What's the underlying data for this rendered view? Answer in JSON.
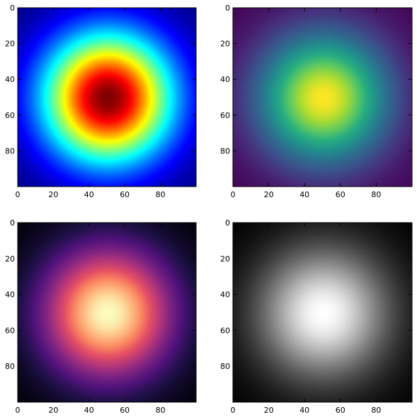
{
  "chart_data": [
    {
      "type": "heatmap",
      "colormap": "jet",
      "function": "radial gaussian",
      "data_shape": [
        100,
        100
      ],
      "center": [
        50,
        50
      ],
      "sigma": 25,
      "value_range": [
        0,
        1
      ],
      "xlim": [
        0,
        100
      ],
      "ylim": [
        100,
        0
      ],
      "xticks": [
        0,
        20,
        40,
        60,
        80
      ],
      "yticks": [
        0,
        20,
        40,
        60,
        80
      ],
      "xtick_labels": [
        "0",
        "20",
        "40",
        "60",
        "80"
      ],
      "ytick_labels": [
        "0",
        "20",
        "40",
        "60",
        "80"
      ]
    },
    {
      "type": "heatmap",
      "colormap": "viridis",
      "function": "radial gaussian",
      "data_shape": [
        100,
        100
      ],
      "center": [
        50,
        50
      ],
      "sigma": 25,
      "value_range": [
        0,
        1
      ],
      "xlim": [
        0,
        100
      ],
      "ylim": [
        100,
        0
      ],
      "xticks": [
        0,
        20,
        40,
        60,
        80
      ],
      "yticks": [
        0,
        20,
        40,
        60,
        80
      ],
      "xtick_labels": [
        "0",
        "20",
        "40",
        "60",
        "80"
      ],
      "ytick_labels": [
        "0",
        "20",
        "40",
        "60",
        "80"
      ]
    },
    {
      "type": "heatmap",
      "colormap": "magma",
      "function": "radial gaussian",
      "data_shape": [
        100,
        100
      ],
      "center": [
        50,
        50
      ],
      "sigma": 25,
      "value_range": [
        0,
        1
      ],
      "xlim": [
        0,
        100
      ],
      "ylim": [
        100,
        0
      ],
      "xticks": [
        0,
        20,
        40,
        60,
        80
      ],
      "yticks": [
        0,
        20,
        40,
        60,
        80
      ],
      "xtick_labels": [
        "0",
        "20",
        "40",
        "60",
        "80"
      ],
      "ytick_labels": [
        "0",
        "20",
        "40",
        "60",
        "80"
      ]
    },
    {
      "type": "heatmap",
      "colormap": "gray",
      "function": "radial gaussian",
      "data_shape": [
        100,
        100
      ],
      "center": [
        50,
        50
      ],
      "sigma": 25,
      "value_range": [
        0,
        1
      ],
      "xlim": [
        0,
        100
      ],
      "ylim": [
        100,
        0
      ],
      "xticks": [
        0,
        20,
        40,
        60,
        80
      ],
      "yticks": [
        0,
        20,
        40,
        60,
        80
      ],
      "xtick_labels": [
        "0",
        "20",
        "40",
        "60",
        "80"
      ],
      "ytick_labels": [
        "0",
        "20",
        "40",
        "60",
        "80"
      ]
    }
  ]
}
